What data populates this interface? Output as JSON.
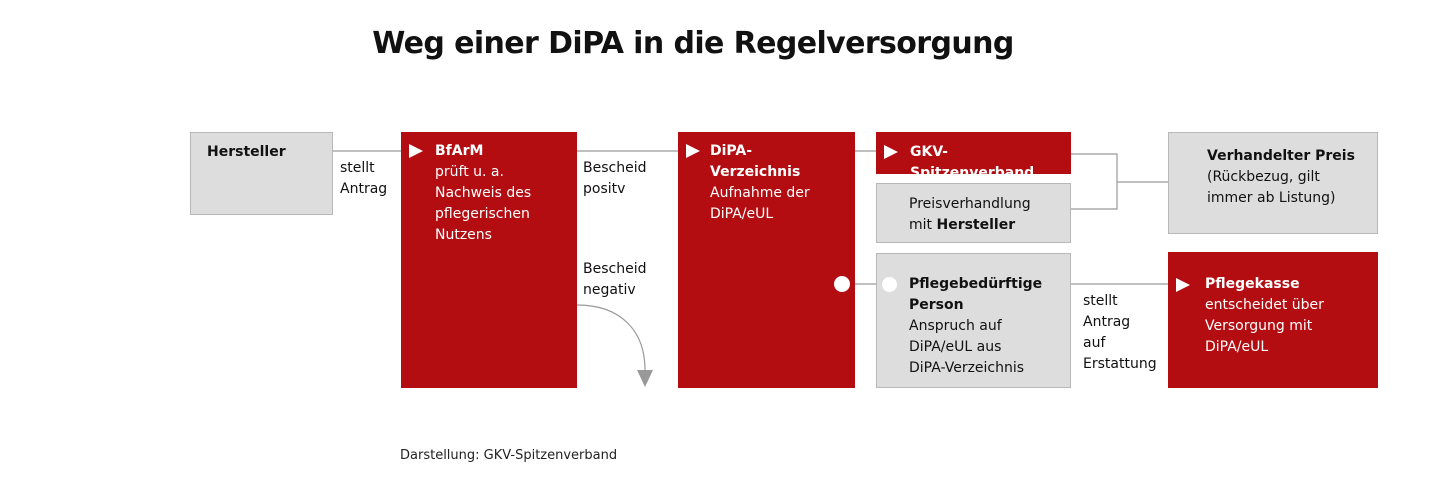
{
  "title": "Weg einer DiPA in die Regelversorgung",
  "hersteller": {
    "label": "Hersteller"
  },
  "edge_stellt_antrag": "stellt\nAntrag",
  "bfarm": {
    "title": "BfArM",
    "text": "prüft u. a.\nNachweis des\npflegerischen\nNutzens"
  },
  "edge_positiv": "Bescheid\npositv",
  "edge_negativ": "Bescheid\nnegativ",
  "verzeichnis": {
    "title": "DiPA-\nVerzeichnis",
    "text": "Aufnahme der\nDiPA/eUL"
  },
  "gkv": {
    "title": "GKV-Spitzenverband"
  },
  "preisverhandlung": {
    "text": "Preisverhandlung\nmit",
    "bold": "Hersteller"
  },
  "preis": {
    "title": "Verhandelter Preis",
    "text": "(Rückbezug, gilt\nimmer ab Listung)"
  },
  "person": {
    "title": "Pflegebedürftige\nPerson",
    "text": "Anspruch auf\nDiPA/eUL aus\nDiPA-Verzeichnis"
  },
  "edge_erstattung": "stellt\nAntrag\nauf\nErstattung",
  "pflegekasse": {
    "title": "Pflegekasse",
    "text": "entscheidet über\nVersorgung mit\nDiPA/eUL"
  },
  "source": "Darstellung: GKV-Spitzenverband",
  "colors": {
    "red": "#b30d12",
    "grey": "#dddddd",
    "line": "#999999"
  }
}
